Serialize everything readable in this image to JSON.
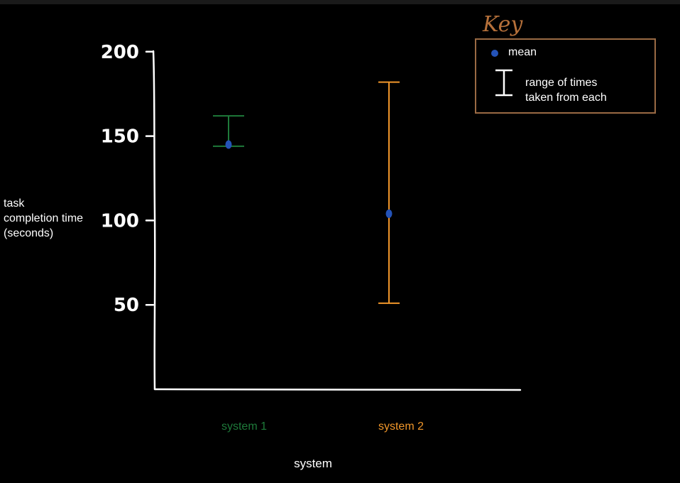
{
  "chart_data": {
    "type": "scatter",
    "title": "",
    "xlabel": "system",
    "ylabel": [
      "task",
      "completion time",
      "(seconds)"
    ],
    "categories": [
      "system 1",
      "system 2"
    ],
    "category_colors": [
      "#1e7a3a",
      "#f0962a"
    ],
    "mean_color": "#2453b8",
    "axis_color": "#ffffff",
    "ylim": [
      0,
      200
    ],
    "yticks": [
      50,
      100,
      150,
      200
    ],
    "ytick_labels": [
      "50",
      "100",
      "150",
      "200"
    ],
    "series": [
      {
        "category": "system 1",
        "mean": 145,
        "min": 144,
        "max": 162
      },
      {
        "category": "system 2",
        "mean": 104,
        "min": 51,
        "max": 182
      }
    ],
    "grid": false,
    "legend": {
      "title": "Key",
      "title_color": "#b5703a",
      "border_color": "#9a6a44",
      "placement": "top-right",
      "entries": [
        {
          "symbol": "dot",
          "label": "mean"
        },
        {
          "symbol": "error-bar",
          "label": [
            "range of times",
            "taken from each"
          ]
        }
      ]
    }
  }
}
